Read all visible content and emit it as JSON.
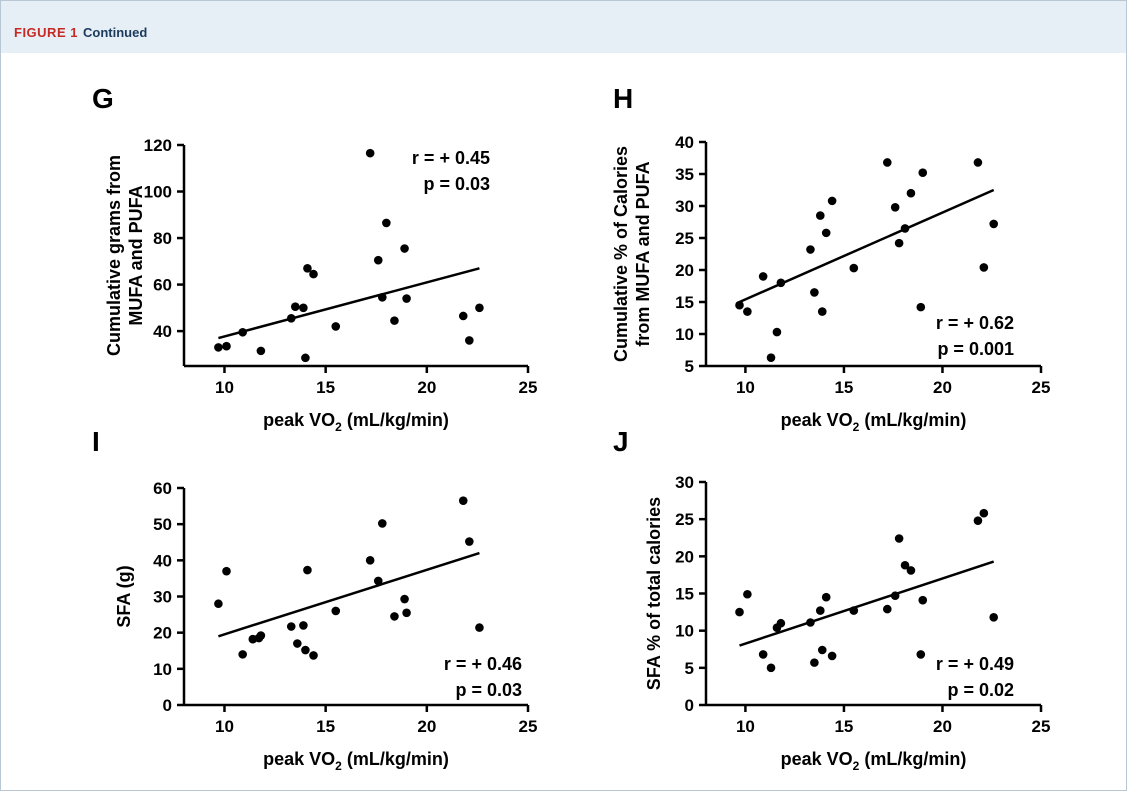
{
  "figure": {
    "label": "FIGURE 1",
    "subtitle": "Continued"
  },
  "colors": {
    "banner_bg": "#e6eef6",
    "figure_label": "#c62a24",
    "subtitle": "#1b3a5c",
    "ink": "#000000"
  },
  "chart_data": [
    {
      "panel": "G",
      "type": "scatter",
      "ylabel_lines": [
        "Cumulative grams from",
        "MUFA and PUFA"
      ],
      "xlabel": {
        "main": "peak VO",
        "sub": "2",
        "rest": " (mL/kg/min)"
      },
      "xlim": [
        8,
        25
      ],
      "ylim": [
        25,
        120
      ],
      "xticks": [
        10,
        15,
        20,
        25
      ],
      "yticks": [
        40,
        60,
        80,
        100,
        120
      ],
      "annotations": [
        "r = + 0.45",
        "p = 0.03"
      ],
      "annotation_position": "top-right",
      "trend_line": {
        "x": [
          9.7,
          22.6
        ],
        "y": [
          37,
          67
        ]
      },
      "x": [
        9.7,
        10.1,
        10.9,
        11.8,
        13.3,
        13.5,
        13.9,
        14.0,
        14.1,
        14.4,
        15.5,
        17.2,
        17.6,
        17.8,
        18.0,
        18.4,
        18.9,
        19.0,
        21.8,
        22.1,
        22.6
      ],
      "y": [
        33,
        33.5,
        39.5,
        31.5,
        45.5,
        50.5,
        50,
        28.5,
        67,
        64.5,
        42,
        116.5,
        70.5,
        54.5,
        86.5,
        44.5,
        75.5,
        54,
        46.5,
        36,
        50
      ]
    },
    {
      "panel": "H",
      "type": "scatter",
      "ylabel_lines": [
        "Cumulative % of Calories",
        "from MUFA and PUFA"
      ],
      "xlabel": {
        "main": "peak VO",
        "sub": "2",
        "rest": " (mL/kg/min)"
      },
      "xlim": [
        8,
        25
      ],
      "ylim": [
        5,
        40
      ],
      "xticks": [
        10,
        15,
        20,
        25
      ],
      "yticks": [
        5,
        10,
        15,
        20,
        25,
        30,
        35,
        40
      ],
      "annotations": [
        "r = + 0.62",
        "p = 0.001"
      ],
      "annotation_position": "bottom-right",
      "trend_line": {
        "x": [
          9.7,
          22.6
        ],
        "y": [
          15,
          32.5
        ]
      },
      "x": [
        9.7,
        10.1,
        10.9,
        11.3,
        11.6,
        11.8,
        13.3,
        13.5,
        13.8,
        13.9,
        14.1,
        14.4,
        15.5,
        17.2,
        17.6,
        17.8,
        18.1,
        18.4,
        18.9,
        19.0,
        21.8,
        22.1,
        22.6
      ],
      "y": [
        14.5,
        13.5,
        19,
        6.3,
        10.3,
        18,
        23.2,
        16.5,
        28.5,
        13.5,
        25.8,
        30.8,
        20.3,
        36.8,
        29.8,
        24.2,
        26.5,
        32,
        14.2,
        35.2,
        36.8,
        20.4,
        27.2
      ]
    },
    {
      "panel": "I",
      "type": "scatter",
      "ylabel_lines": [
        "SFA (g)"
      ],
      "xlabel": {
        "main": "peak VO",
        "sub": "2",
        "rest": " (mL/kg/min)"
      },
      "xlim": [
        8,
        25
      ],
      "ylim": [
        0,
        60
      ],
      "xticks": [
        10,
        15,
        20,
        25
      ],
      "yticks": [
        0,
        10,
        20,
        30,
        40,
        50,
        60
      ],
      "annotations": [
        "r = + 0.46",
        "p = 0.03"
      ],
      "annotation_position": "bottom-right",
      "trend_line": {
        "x": [
          9.7,
          22.6
        ],
        "y": [
          19,
          42
        ]
      },
      "x": [
        9.7,
        10.1,
        10.9,
        11.4,
        11.7,
        11.8,
        13.3,
        13.6,
        13.9,
        14.0,
        14.1,
        14.4,
        15.5,
        17.2,
        17.6,
        17.8,
        18.4,
        18.9,
        19.0,
        21.8,
        22.1,
        22.6
      ],
      "y": [
        28,
        37,
        14,
        18.2,
        18.5,
        19.2,
        21.7,
        17,
        22,
        15.2,
        37.3,
        13.7,
        26,
        40,
        34.3,
        50.2,
        24.5,
        29.3,
        25.5,
        56.5,
        45.2,
        21.4
      ]
    },
    {
      "panel": "J",
      "type": "scatter",
      "ylabel_lines": [
        "SFA % of total calories"
      ],
      "xlabel": {
        "main": "peak VO",
        "sub": "2",
        "rest": " (mL/kg/min)"
      },
      "xlim": [
        8,
        25
      ],
      "ylim": [
        0,
        30
      ],
      "xticks": [
        10,
        15,
        20,
        25
      ],
      "yticks": [
        0,
        5,
        10,
        15,
        20,
        25,
        30
      ],
      "annotations": [
        "r = + 0.49",
        "p = 0.02"
      ],
      "annotation_position": "bottom-right",
      "trend_line": {
        "x": [
          9.7,
          22.6
        ],
        "y": [
          8,
          19.3
        ]
      },
      "x": [
        9.7,
        10.1,
        10.9,
        11.3,
        11.6,
        11.8,
        13.3,
        13.5,
        13.8,
        13.9,
        14.1,
        14.4,
        15.5,
        17.2,
        17.6,
        17.8,
        18.1,
        18.4,
        18.9,
        19.0,
        21.8,
        22.1,
        22.6
      ],
      "y": [
        12.5,
        14.9,
        6.8,
        5,
        10.4,
        11,
        11.1,
        5.7,
        12.7,
        7.4,
        14.5,
        6.6,
        12.7,
        12.9,
        14.7,
        22.4,
        18.8,
        18.1,
        6.8,
        14.1,
        24.8,
        25.8,
        11.8
      ]
    }
  ]
}
